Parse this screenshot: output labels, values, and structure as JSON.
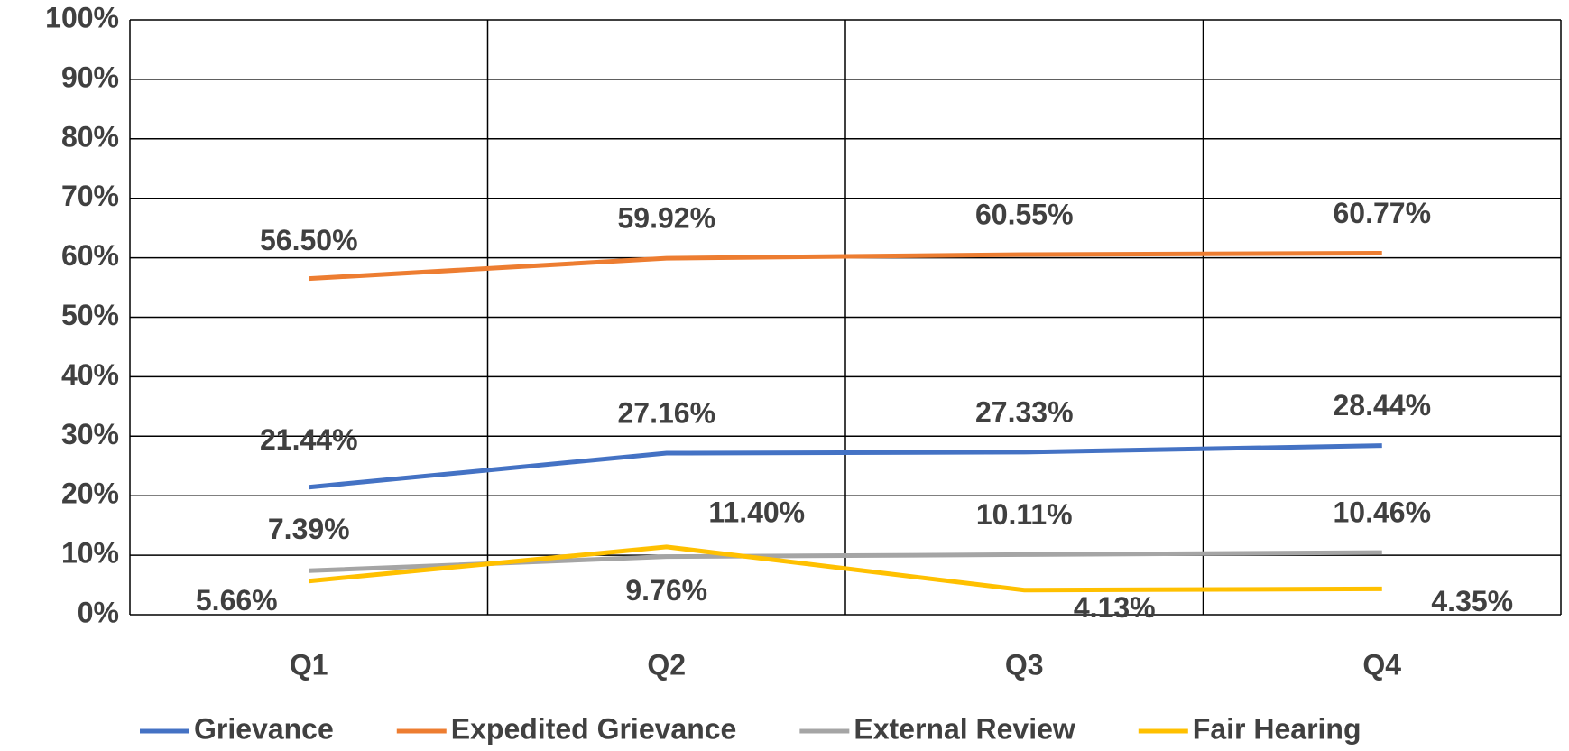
{
  "chart_data": {
    "type": "line",
    "categories": [
      "Q1",
      "Q2",
      "Q3",
      "Q4"
    ],
    "series": [
      {
        "name": "Grievance",
        "color": "#4472c4",
        "values": [
          21.44,
          27.16,
          27.33,
          28.44
        ],
        "value_labels": [
          "21.44%",
          "27.16%",
          "27.33%",
          "28.44%"
        ]
      },
      {
        "name": "Expedited Grievance",
        "color": "#ed7d31",
        "values": [
          56.5,
          59.92,
          60.55,
          60.77
        ],
        "value_labels": [
          "56.50%",
          "59.92%",
          "60.55%",
          "60.77%"
        ]
      },
      {
        "name": "External Review",
        "color": "#a5a5a5",
        "values": [
          7.39,
          9.76,
          10.11,
          10.46
        ],
        "value_labels": [
          "7.39%",
          "9.76%",
          "10.11%",
          "10.46%"
        ]
      },
      {
        "name": "Fair Hearing",
        "color": "#ffc000",
        "values": [
          5.66,
          11.4,
          4.13,
          4.35
        ],
        "value_labels": [
          "5.66%",
          "11.40%",
          "4.13%",
          "4.35%"
        ]
      }
    ],
    "ylim": [
      0,
      100
    ],
    "yticks": [
      {
        "value": 0,
        "label": "0%"
      },
      {
        "value": 10,
        "label": "10%"
      },
      {
        "value": 20,
        "label": "20%"
      },
      {
        "value": 30,
        "label": "30%"
      },
      {
        "value": 40,
        "label": "40%"
      },
      {
        "value": 50,
        "label": "50%"
      },
      {
        "value": 60,
        "label": "60%"
      },
      {
        "value": 70,
        "label": "70%"
      },
      {
        "value": 80,
        "label": "80%"
      },
      {
        "value": 90,
        "label": "90%"
      },
      {
        "value": 100,
        "label": "100%"
      }
    ],
    "grid": true,
    "legend": "bottom"
  }
}
